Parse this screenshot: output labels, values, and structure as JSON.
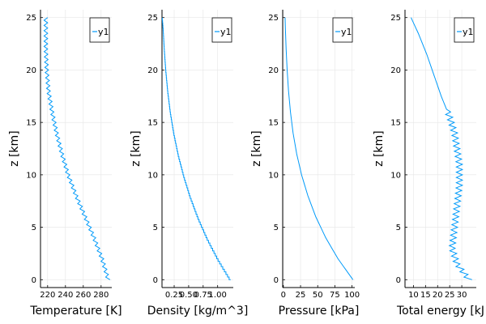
{
  "chart_data": [
    {
      "type": "line",
      "xlabel": "Temperature [K]",
      "ylabel": "z [km]",
      "xlim": [
        212,
        292
      ],
      "ylim": [
        -0.75,
        25.75
      ],
      "xticks": [
        220,
        240,
        260,
        280
      ],
      "xtick_labels": [
        "220",
        "240",
        "260",
        "280"
      ],
      "yticks": [
        0,
        5,
        10,
        15,
        20,
        25
      ],
      "ytick_labels": [
        "0",
        "5",
        "10",
        "15",
        "20",
        "25"
      ],
      "grid": true,
      "legend": "top-right",
      "series": [
        {
          "name": "y1",
          "color": "#009af9",
          "zigzag_amplitude": 4,
          "zigzag_period_km": 0.5,
          "x": [
            288,
            281,
            272,
            262,
            252,
            243,
            236,
            230,
            225,
            221,
            219,
            218,
            218,
            218
          ],
          "y": [
            0,
            2,
            4,
            6,
            8,
            10,
            12,
            14,
            16,
            18,
            20,
            22,
            24,
            25
          ]
        }
      ]
    },
    {
      "type": "line",
      "xlabel": "Density [kg/m^3]",
      "ylabel": "z [km]",
      "xlim": [
        0.04,
        1.27
      ],
      "ylim": [
        -0.75,
        25.75
      ],
      "xticks": [
        0.25,
        0.5,
        0.75,
        1.0
      ],
      "xtick_labels": [
        "0.25",
        "0.50",
        "0.75",
        "1.00"
      ],
      "yticks": [
        0,
        5,
        10,
        15,
        20,
        25
      ],
      "ytick_labels": [
        "0",
        "5",
        "10",
        "15",
        "20",
        "25"
      ],
      "grid": true,
      "legend": "top-right",
      "series": [
        {
          "name": "y1",
          "color": "#009af9",
          "step": true,
          "x": [
            1.225,
            1.007,
            0.819,
            0.66,
            0.526,
            0.414,
            0.32,
            0.245,
            0.185,
            0.14,
            0.106,
            0.08,
            0.06,
            0.046,
            0.04
          ],
          "y": [
            0,
            2,
            4,
            6,
            8,
            10,
            12,
            14,
            16,
            18,
            20,
            22,
            24,
            25,
            25
          ]
        }
      ]
    },
    {
      "type": "line",
      "xlabel": "Pressure [kPa]",
      "ylabel": "z [km]",
      "xlim": [
        -1,
        104
      ],
      "ylim": [
        -0.75,
        25.75
      ],
      "xticks": [
        0,
        25,
        50,
        75,
        100
      ],
      "xtick_labels": [
        "0",
        "25",
        "50",
        "75",
        "100"
      ],
      "yticks": [
        0,
        5,
        10,
        15,
        20,
        25
      ],
      "ytick_labels": [
        "0",
        "5",
        "10",
        "15",
        "20",
        "25"
      ],
      "grid": true,
      "legend": "top-right",
      "series": [
        {
          "name": "y1",
          "color": "#009af9",
          "x": [
            101.3,
            79.5,
            61.7,
            47.2,
            35.7,
            26.5,
            19.4,
            14.1,
            10.3,
            7.5,
            5.5,
            4.0,
            2.9,
            2.5
          ],
          "y": [
            0,
            2,
            4,
            6,
            8,
            10,
            12,
            14,
            16,
            18,
            20,
            22,
            24,
            25
          ]
        }
      ]
    },
    {
      "type": "line",
      "xlabel": "Total energy [kJ",
      "ylabel": "z [km]",
      "xlim": [
        6.5,
        36
      ],
      "ylim": [
        -0.75,
        25.75
      ],
      "xticks": [
        10,
        15,
        20,
        25,
        30
      ],
      "xtick_labels": [
        "10",
        "15",
        "20",
        "25",
        "30"
      ],
      "yticks": [
        0,
        5,
        10,
        15,
        20,
        25
      ],
      "ytick_labels": [
        "0",
        "5",
        "10",
        "15",
        "20",
        "25"
      ],
      "grid": true,
      "legend": "top-right",
      "series": [
        {
          "name": "y1",
          "color": "#009af9",
          "zigzag_amplitude": 2.5,
          "zigzag_period_km": 0.5,
          "zigzag_top_km": 16,
          "x": [
            33,
            28,
            26,
            27,
            28,
            29,
            29,
            28,
            27,
            25,
            21.5,
            18.5,
            15.5,
            12,
            9
          ],
          "y": [
            0,
            1.5,
            3,
            5,
            7,
            9,
            11,
            12.5,
            14,
            15.5,
            17.5,
            19.5,
            21.5,
            23.5,
            25
          ]
        }
      ]
    }
  ]
}
